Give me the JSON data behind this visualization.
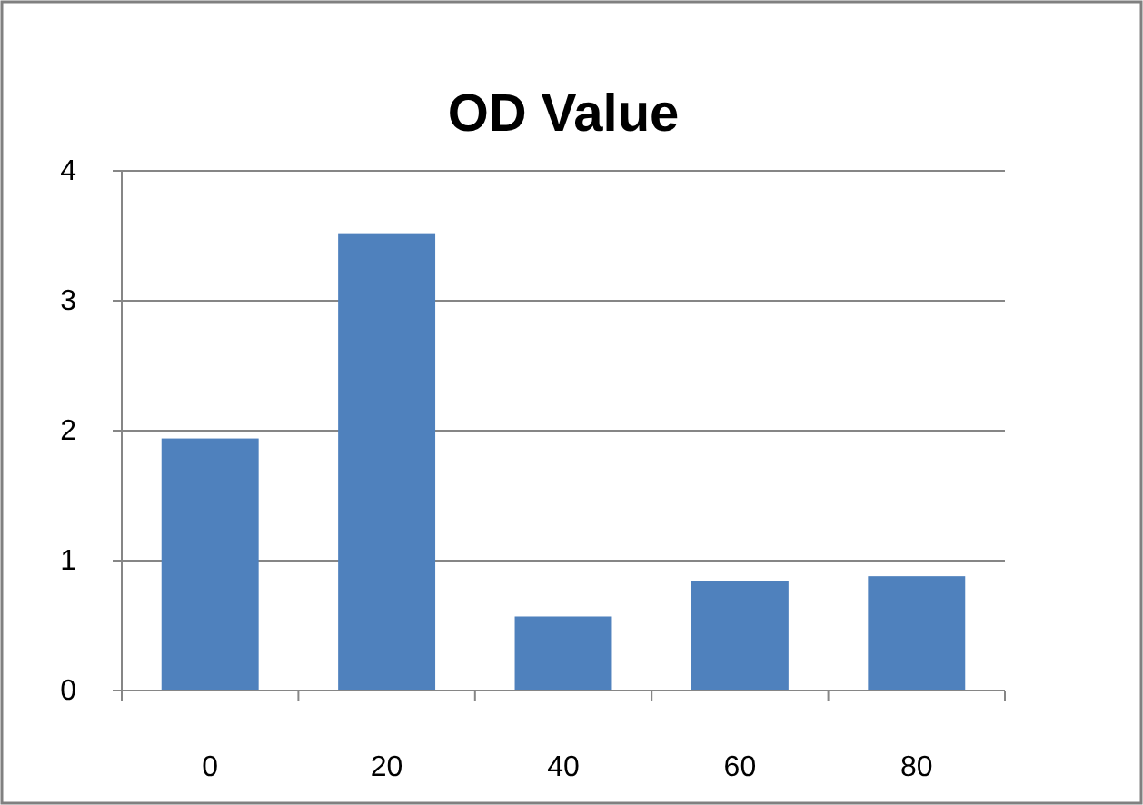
{
  "chart_data": {
    "type": "bar",
    "title": "OD Value",
    "categories": [
      "0",
      "20",
      "40",
      "60",
      "80"
    ],
    "values": [
      1.94,
      3.52,
      0.57,
      0.84,
      0.88
    ],
    "color": "#4f81bd",
    "ylim": [
      0,
      4
    ],
    "yticks": [
      0,
      1,
      2,
      3,
      4
    ],
    "grid": "y"
  }
}
